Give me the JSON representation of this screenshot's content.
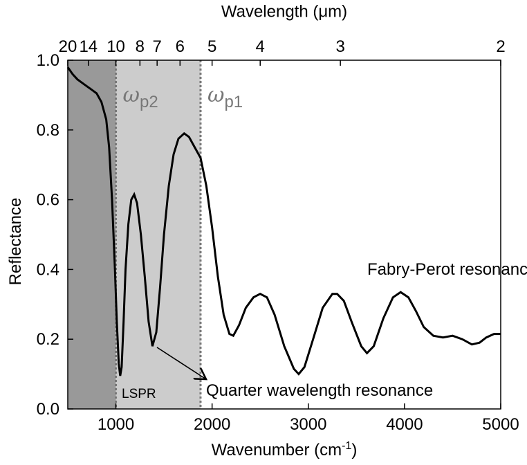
{
  "chart_data": {
    "type": "line",
    "x_label": {
      "main": "Wavenumber (cm",
      "sup": "-1",
      "end": ")"
    },
    "y_label": "Reflectance",
    "x2_label": "Wavelength (μm)",
    "x": [
      500,
      550,
      600,
      650,
      700,
      750,
      800,
      850,
      900,
      930,
      960,
      990,
      1010,
      1030,
      1045,
      1060,
      1080,
      1100,
      1130,
      1160,
      1190,
      1220,
      1260,
      1300,
      1340,
      1380,
      1420,
      1460,
      1500,
      1550,
      1600,
      1650,
      1710,
      1760,
      1820,
      1880,
      1940,
      2000,
      2060,
      2120,
      2180,
      2220,
      2280,
      2350,
      2430,
      2500,
      2570,
      2650,
      2750,
      2850,
      2900,
      2960,
      3050,
      3150,
      3250,
      3300,
      3370,
      3450,
      3550,
      3610,
      3680,
      3780,
      3880,
      3960,
      4040,
      4120,
      4200,
      4300,
      4400,
      4500,
      4600,
      4700,
      4780,
      4850,
      4930,
      5000
    ],
    "values": [
      0.98,
      0.96,
      0.945,
      0.935,
      0.925,
      0.915,
      0.905,
      0.88,
      0.83,
      0.75,
      0.6,
      0.4,
      0.25,
      0.13,
      0.095,
      0.12,
      0.25,
      0.4,
      0.53,
      0.6,
      0.615,
      0.59,
      0.5,
      0.38,
      0.25,
      0.18,
      0.22,
      0.35,
      0.5,
      0.64,
      0.73,
      0.775,
      0.79,
      0.78,
      0.75,
      0.72,
      0.64,
      0.52,
      0.38,
      0.27,
      0.215,
      0.21,
      0.24,
      0.29,
      0.32,
      0.33,
      0.32,
      0.27,
      0.18,
      0.115,
      0.1,
      0.12,
      0.2,
      0.29,
      0.33,
      0.33,
      0.31,
      0.25,
      0.18,
      0.16,
      0.18,
      0.26,
      0.32,
      0.335,
      0.32,
      0.28,
      0.235,
      0.21,
      0.205,
      0.21,
      0.2,
      0.185,
      0.19,
      0.205,
      0.215,
      0.215
    ],
    "color": "#000000",
    "xlim": [
      500,
      5000
    ],
    "ylim": [
      0,
      1
    ],
    "xticks": [
      1000,
      2000,
      3000,
      4000,
      5000
    ],
    "yticks": [
      {
        "value": 0,
        "label": "0.0"
      },
      0.2,
      0.4,
      0.6,
      0.8,
      {
        "value": 1,
        "label": "1.0"
      }
    ],
    "x2ticks": [
      {
        "value": 500,
        "label": "20"
      },
      {
        "value": 714.3,
        "label": "14"
      },
      {
        "value": 1000,
        "label": "10"
      },
      {
        "value": 1250,
        "label": "8"
      },
      {
        "value": 1428.6,
        "label": "7"
      },
      {
        "value": 1666.7,
        "label": "6"
      },
      {
        "value": 2000,
        "label": "5"
      },
      {
        "value": 2500,
        "label": "4"
      },
      {
        "value": 3333.3,
        "label": "3"
      },
      {
        "value": 5000,
        "label": "2"
      }
    ],
    "regions": [
      {
        "xlim": [
          500,
          1000
        ],
        "color": "#999999"
      },
      {
        "xlim": [
          1000,
          1880
        ],
        "color": "#cccccc"
      }
    ],
    "markers": [
      {
        "x": 1000,
        "symbol": "ω",
        "sub": "p2"
      },
      {
        "x": 1880,
        "symbol": "ω",
        "sub": "p1"
      }
    ],
    "annotations": [
      "Fabry-Perot resonances",
      "LSPR",
      "Quarter wavelength resonance"
    ]
  }
}
